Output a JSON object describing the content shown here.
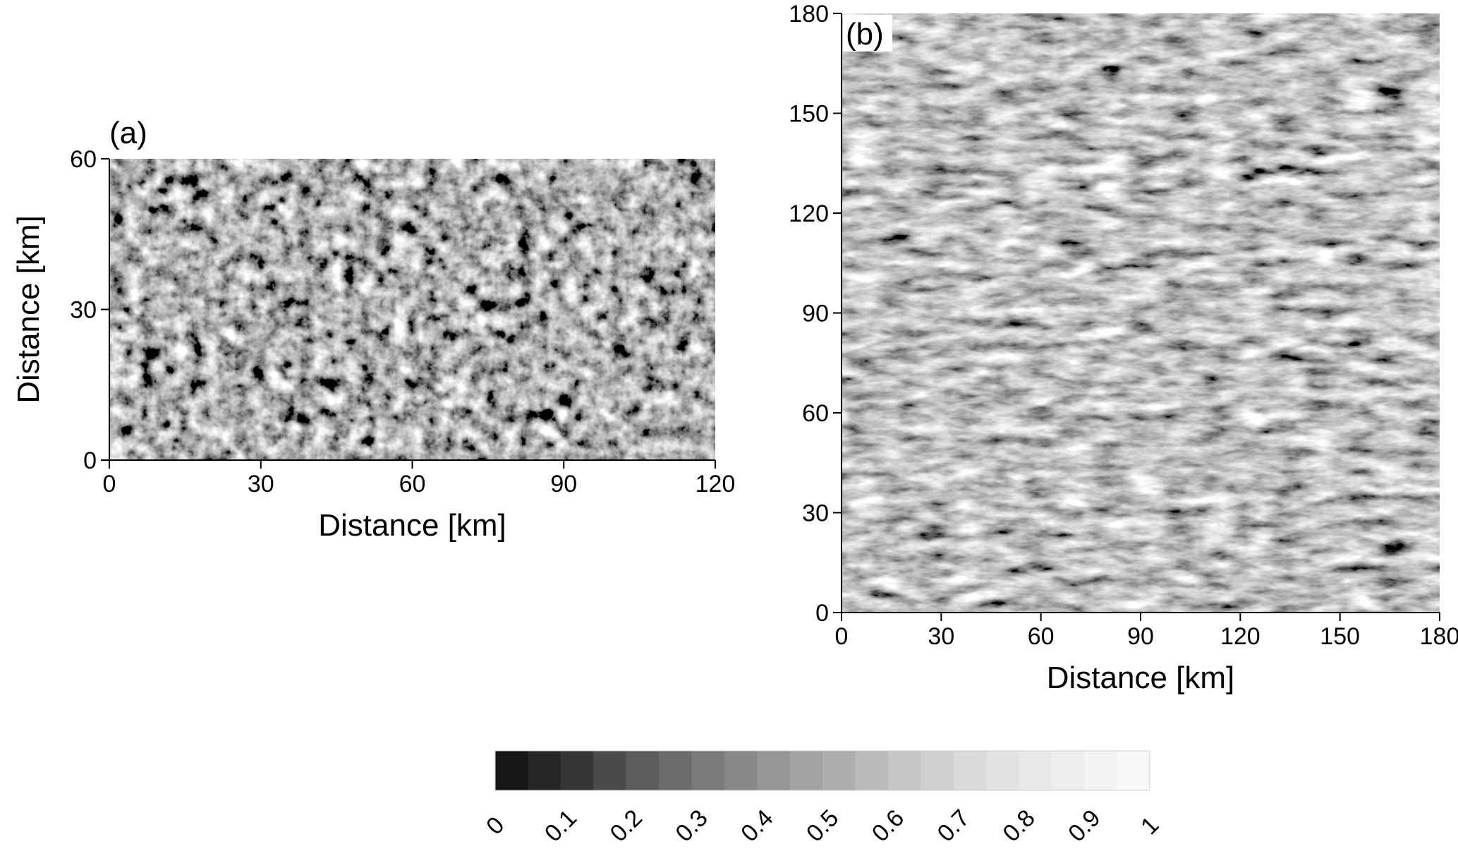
{
  "chart_data": [
    {
      "type": "image",
      "panel_label": "(a)",
      "xlabel": "Distance [km]",
      "ylabel": "Distance [km]",
      "xlim": [
        0,
        120
      ],
      "ylim": [
        0,
        60
      ],
      "xticks": [
        0,
        30,
        60,
        90,
        120
      ],
      "yticks": [
        0,
        30,
        60
      ]
    },
    {
      "type": "image",
      "panel_label": "(b)",
      "xlabel": "Distance [km]",
      "xlim": [
        0,
        180
      ],
      "ylim": [
        0,
        180
      ],
      "xticks": [
        0,
        30,
        60,
        90,
        120,
        150,
        180
      ],
      "yticks": [
        0,
        30,
        60,
        90,
        120,
        150,
        180
      ]
    },
    {
      "type": "colorbar",
      "lim": [
        0,
        1
      ],
      "ticks": [
        0,
        0.1,
        0.2,
        0.3,
        0.4,
        0.5,
        0.6,
        0.7,
        0.8,
        0.9,
        1
      ],
      "colors": [
        "#161616",
        "#262626",
        "#363636",
        "#4a4a4a",
        "#5c5c5c",
        "#6c6c6c",
        "#7a7a7a",
        "#888888",
        "#969696",
        "#a2a2a2",
        "#aeaeae",
        "#bababa",
        "#c6c6c6",
        "#d0d0d0",
        "#dadada",
        "#e2e2e2",
        "#e8e8e8",
        "#eeeeee",
        "#f3f3f3",
        "#f8f8f8"
      ]
    }
  ]
}
